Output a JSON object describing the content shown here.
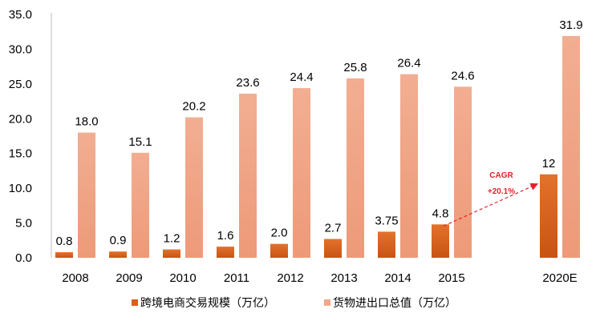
{
  "chart_data": {
    "type": "bar",
    "categories": [
      "2008",
      "2009",
      "2010",
      "2011",
      "2012",
      "2013",
      "2014",
      "2015",
      "2020E"
    ],
    "series": [
      {
        "name": "跨境电商交易规模（万亿）",
        "values": [
          0.8,
          0.9,
          1.2,
          1.6,
          2.0,
          2.7,
          3.75,
          4.8,
          12
        ],
        "labels": [
          "0.8",
          "0.9",
          "1.2",
          "1.6",
          "2.0",
          "2.7",
          "3.75",
          "4.8",
          "12"
        ],
        "color": "#D9601E"
      },
      {
        "name": "货物进出口总值（万亿）",
        "values": [
          18.0,
          15.1,
          20.2,
          23.6,
          24.4,
          25.8,
          26.4,
          24.6,
          31.9
        ],
        "labels": [
          "18.0",
          "15.1",
          "20.2",
          "23.6",
          "24.4",
          "25.8",
          "26.4",
          "24.6",
          "31.9"
        ],
        "color": "#F1A88A"
      }
    ],
    "ylim": [
      0,
      35
    ],
    "yticks": [
      "0.0",
      "5.0",
      "10.0",
      "15.0",
      "20.0",
      "25.0",
      "30.0",
      "35.0"
    ],
    "xlabel": "",
    "ylabel": "",
    "grid": false,
    "legend_position": "bottom",
    "annotation": {
      "line1": "CAGR",
      "line2": "+20.1%",
      "color": "#E8202A",
      "from_category": "2015",
      "to_category": "2020E"
    }
  }
}
